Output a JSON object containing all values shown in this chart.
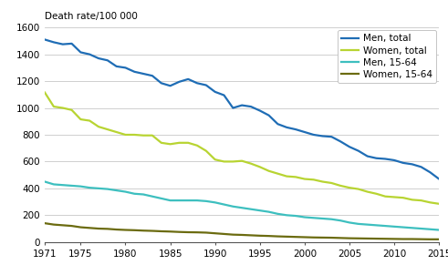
{
  "years": [
    1971,
    1972,
    1973,
    1974,
    1975,
    1976,
    1977,
    1978,
    1979,
    1980,
    1981,
    1982,
    1983,
    1984,
    1985,
    1986,
    1987,
    1988,
    1989,
    1990,
    1991,
    1992,
    1993,
    1994,
    1995,
    1996,
    1997,
    1998,
    1999,
    2000,
    2001,
    2002,
    2003,
    2004,
    2005,
    2006,
    2007,
    2008,
    2009,
    2010,
    2011,
    2012,
    2013,
    2014,
    2015
  ],
  "men_total": [
    1510,
    1490,
    1475,
    1480,
    1415,
    1400,
    1370,
    1355,
    1310,
    1300,
    1270,
    1255,
    1240,
    1185,
    1165,
    1195,
    1215,
    1185,
    1170,
    1120,
    1095,
    1000,
    1020,
    1010,
    980,
    945,
    880,
    855,
    840,
    820,
    800,
    790,
    785,
    750,
    710,
    680,
    640,
    625,
    620,
    610,
    590,
    580,
    560,
    520,
    470
  ],
  "women_total": [
    1115,
    1010,
    1000,
    985,
    915,
    905,
    860,
    840,
    820,
    800,
    800,
    795,
    795,
    740,
    730,
    740,
    740,
    720,
    680,
    615,
    600,
    600,
    605,
    585,
    560,
    530,
    510,
    490,
    485,
    470,
    465,
    450,
    440,
    420,
    405,
    395,
    375,
    360,
    340,
    335,
    330,
    315,
    310,
    295,
    285
  ],
  "men_1564": [
    450,
    430,
    425,
    420,
    415,
    405,
    400,
    395,
    385,
    375,
    360,
    355,
    340,
    325,
    310,
    310,
    310,
    310,
    305,
    295,
    280,
    265,
    255,
    245,
    235,
    225,
    210,
    200,
    195,
    185,
    180,
    175,
    170,
    160,
    145,
    135,
    130,
    125,
    120,
    115,
    110,
    105,
    100,
    95,
    90
  ],
  "women_1564": [
    140,
    130,
    125,
    120,
    110,
    105,
    100,
    98,
    93,
    90,
    88,
    85,
    83,
    80,
    78,
    75,
    73,
    72,
    70,
    65,
    60,
    55,
    53,
    50,
    47,
    45,
    42,
    40,
    38,
    36,
    34,
    33,
    32,
    30,
    28,
    27,
    26,
    25,
    24,
    23,
    22,
    22,
    21,
    20,
    20
  ],
  "color_men_total": "#1f6db5",
  "color_women_total": "#b8d432",
  "color_men_1564": "#3dbfbf",
  "color_women_1564": "#6b6b10",
  "ylabel": "Death rate/100 000",
  "ylim": [
    0,
    1600
  ],
  "yticks": [
    0,
    200,
    400,
    600,
    800,
    1000,
    1200,
    1400,
    1600
  ],
  "xticks": [
    1971,
    1975,
    1980,
    1985,
    1990,
    1995,
    2000,
    2005,
    2010,
    2015
  ],
  "legend_labels": [
    "Men, total",
    "Women, total",
    "Men, 15-64",
    "Women, 15-64"
  ],
  "linewidth": 1.6
}
